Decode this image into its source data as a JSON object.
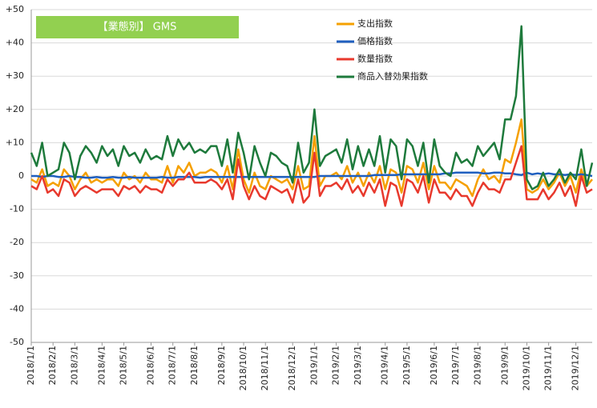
{
  "chart_data": {
    "type": "line",
    "title": "【業態別】 GMS",
    "categories": [
      "2018/1/1",
      null,
      null,
      null,
      "2018/2/1",
      null,
      null,
      null,
      "2018/3/1",
      null,
      null,
      null,
      null,
      "2018/4/1",
      null,
      null,
      null,
      "2018/5/1",
      null,
      null,
      null,
      null,
      "2018/6/1",
      null,
      null,
      null,
      "2018/7/1",
      null,
      null,
      null,
      "2018/8/1",
      null,
      null,
      null,
      null,
      "2018/9/1",
      null,
      null,
      null,
      "2018/10/1",
      null,
      null,
      null,
      "2018/11/1",
      null,
      null,
      null,
      null,
      "2018/12/1",
      null,
      null,
      null,
      "2019/1/1",
      null,
      null,
      null,
      "2019/2/1",
      null,
      null,
      null,
      "2019/3/1",
      null,
      null,
      null,
      null,
      "2019/4/1",
      null,
      null,
      null,
      "2019/5/1",
      null,
      null,
      null,
      null,
      "2019/6/1",
      null,
      null,
      null,
      "2019/7/1",
      null,
      null,
      null,
      "2019/8/1",
      null,
      null,
      null,
      null,
      "2019/9/1",
      null,
      null,
      null,
      "2019/10/1",
      null,
      null,
      null,
      "2019/11/1",
      null,
      null,
      null,
      null,
      "2019/12/1",
      null,
      null,
      null
    ],
    "series": [
      {
        "name": "支出指数",
        "color": "#f5a000",
        "values": [
          -1,
          -2,
          2,
          -3,
          -2,
          -3,
          2,
          0,
          -4,
          -1,
          1,
          -2,
          -1,
          -2,
          -1,
          -1,
          -3,
          1,
          -1,
          0,
          -2,
          1,
          -1,
          -1,
          -2,
          3,
          -2,
          3,
          1,
          4,
          0,
          1,
          1,
          2,
          1,
          -2,
          3,
          -4,
          8,
          -1,
          -5,
          1,
          -3,
          -4,
          0,
          -1,
          -2,
          -1,
          -4,
          3,
          -4,
          -3,
          12,
          -3,
          0,
          0,
          1,
          -1,
          3,
          -2,
          1,
          -3,
          1,
          -2,
          3,
          -4,
          2,
          1,
          -5,
          3,
          2,
          -2,
          4,
          -4,
          3,
          -2,
          -2,
          -4,
          -1,
          -2,
          -3,
          -6,
          -1,
          2,
          -1,
          0,
          -2,
          5,
          4,
          10,
          17,
          -4,
          -5,
          -4,
          -1,
          -4,
          -2,
          1,
          -3,
          0,
          -5,
          2,
          -3,
          -1
        ]
      },
      {
        "name": "価格指数",
        "color": "#1f5fbf",
        "values": [
          0,
          0,
          -0.3,
          0,
          0,
          -0.3,
          -0.3,
          0,
          -0.3,
          -0.3,
          -0.5,
          -0.5,
          -0.3,
          -0.5,
          -0.5,
          -0.3,
          -0.5,
          -0.5,
          -0.3,
          -0.5,
          -0.5,
          -0.5,
          -0.5,
          -0.5,
          -0.3,
          -0.5,
          -0.5,
          -0.3,
          -0.3,
          -0.3,
          -0.3,
          -0.5,
          -0.3,
          -0.3,
          -0.3,
          -0.3,
          -0.3,
          -0.3,
          -0.3,
          -0.3,
          -0.3,
          -0.3,
          -0.3,
          -0.3,
          -0.3,
          -0.3,
          -0.3,
          -0.3,
          -0.3,
          -0.3,
          -0.3,
          -0.3,
          -0.3,
          0,
          0,
          0,
          0,
          0,
          0,
          0,
          0,
          0,
          0,
          0.3,
          0.3,
          0.3,
          0.3,
          0.3,
          0.5,
          0.5,
          0.5,
          0.5,
          0.5,
          0.5,
          0.5,
          0.5,
          0.8,
          0.8,
          1,
          1,
          1,
          1,
          1,
          0.8,
          0.8,
          1,
          1,
          0.8,
          0.8,
          0.5,
          0.3,
          1,
          0.5,
          0.8,
          0.5,
          0.8,
          0.5,
          0.5,
          0.3,
          0.5,
          0.3,
          0.5,
          0.3,
          0
        ]
      },
      {
        "name": "数量指数",
        "color": "#e8392d",
        "values": [
          -3,
          -4,
          0,
          -5,
          -4,
          -6,
          -1,
          -2,
          -6,
          -4,
          -3,
          -4,
          -5,
          -4,
          -4,
          -4,
          -6,
          -3,
          -4,
          -3,
          -5,
          -3,
          -4,
          -4,
          -5,
          -1,
          -3,
          -1,
          -1,
          1,
          -2,
          -2,
          -2,
          -1,
          -2,
          -4,
          -1,
          -7,
          5,
          -3,
          -7,
          -3,
          -6,
          -7,
          -3,
          -4,
          -5,
          -4,
          -8,
          -1,
          -8,
          -6,
          7,
          -6,
          -3,
          -3,
          -2,
          -4,
          -1,
          -5,
          -3,
          -6,
          -2,
          -5,
          -1,
          -9,
          -2,
          -3,
          -9,
          -1,
          -2,
          -5,
          0,
          -8,
          -1,
          -5,
          -5,
          -7,
          -4,
          -6,
          -6,
          -9,
          -5,
          -2,
          -4,
          -4,
          -5,
          -1,
          -1,
          4,
          9,
          -7,
          -7,
          -7,
          -4,
          -7,
          -5,
          -2,
          -6,
          -3,
          -9,
          0,
          -5,
          -4
        ]
      },
      {
        "name": "商品入替効果指数",
        "color": "#1e7a3c",
        "values": [
          7,
          3,
          10,
          0,
          1,
          2,
          10,
          7,
          -1,
          6,
          9,
          7,
          4,
          9,
          6,
          8,
          3,
          9,
          6,
          7,
          4,
          8,
          5,
          6,
          5,
          12,
          6,
          11,
          8,
          10,
          7,
          8,
          7,
          9,
          9,
          3,
          11,
          1,
          13,
          7,
          -1,
          9,
          4,
          0,
          7,
          6,
          4,
          3,
          -2,
          10,
          1,
          4,
          20,
          3,
          6,
          7,
          8,
          4,
          11,
          2,
          9,
          3,
          8,
          3,
          12,
          1,
          11,
          9,
          -1,
          11,
          9,
          3,
          10,
          -2,
          11,
          3,
          1,
          0,
          7,
          4,
          5,
          3,
          9,
          6,
          8,
          10,
          5,
          17,
          17,
          24,
          45,
          -1,
          -4,
          -3,
          1,
          -3,
          -1,
          2,
          -2,
          1,
          -1,
          8,
          -3,
          4
        ]
      }
    ],
    "ylim": [
      -50,
      50
    ],
    "yticks": [
      {
        "value": 50,
        "label": "+50"
      },
      {
        "value": 40,
        "label": "+40"
      },
      {
        "value": 30,
        "label": "+30"
      },
      {
        "value": 20,
        "label": "+20"
      },
      {
        "value": 10,
        "label": "+10"
      },
      0,
      -10,
      -20,
      -30,
      -40,
      -50
    ],
    "grid": true
  }
}
